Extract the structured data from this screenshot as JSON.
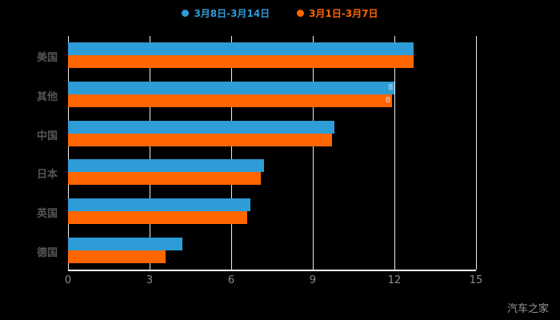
{
  "watermark": "汽车之家",
  "chart_data": {
    "type": "bar",
    "orientation": "horizontal",
    "title": "",
    "xlabel": "",
    "ylabel": "",
    "categories": [
      "美国",
      "其他",
      "中国",
      "日本",
      "英国",
      "德国"
    ],
    "series": [
      {
        "name": "3月8日-3月14日",
        "color": "#2e9cd6",
        "values": [
          12.7,
          12.0,
          9.8,
          7.2,
          6.7,
          4.2
        ]
      },
      {
        "name": "3月1日-3月7日",
        "color": "#ff6600",
        "values": [
          12.7,
          11.9,
          9.7,
          7.1,
          6.6,
          3.6
        ]
      }
    ],
    "xlim": [
      0,
      15
    ],
    "xticks": [
      "0",
      "3",
      "6",
      "9",
      "12",
      "15"
    ],
    "grid": true,
    "legend_position": "top",
    "background": "#000000",
    "annotations": [
      {
        "text": "8",
        "category_index": 1,
        "series_index": 0
      },
      {
        "text": "8",
        "category_index": 1,
        "series_index": 1
      }
    ]
  }
}
